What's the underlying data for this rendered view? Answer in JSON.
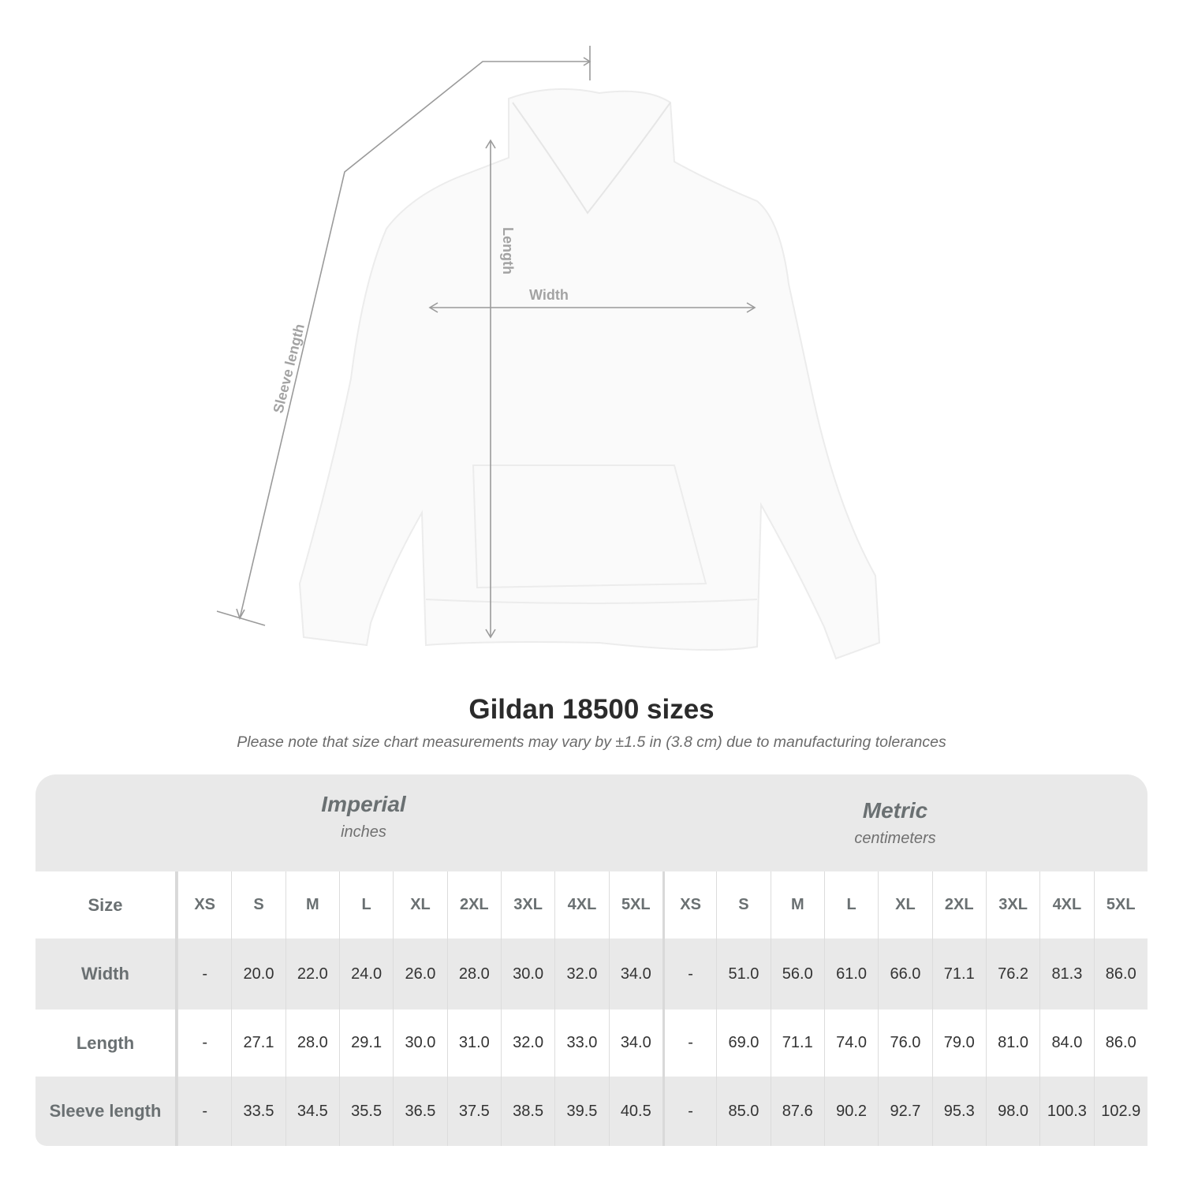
{
  "illustration": {
    "labels": {
      "sleeve": "Sleeve length",
      "length": "Length",
      "width": "Width"
    }
  },
  "title": "Gildan 18500 sizes",
  "note": "Please note that size chart measurements may vary by ±1.5 in (3.8 cm) due to manufacturing tolerances",
  "imperial": {
    "heading": "Imperial",
    "unit": "inches"
  },
  "metric": {
    "heading": "Metric",
    "unit": "centimeters"
  },
  "size_label": "Size",
  "sizes": [
    "XS",
    "S",
    "M",
    "L",
    "XL",
    "2XL",
    "3XL",
    "4XL",
    "5XL"
  ],
  "rows": [
    {
      "label": "Width",
      "imperial": [
        "-",
        "20.0",
        "22.0",
        "24.0",
        "26.0",
        "28.0",
        "30.0",
        "32.0",
        "34.0"
      ],
      "metric": [
        "-",
        "51.0",
        "56.0",
        "61.0",
        "66.0",
        "71.1",
        "76.2",
        "81.3",
        "86.0"
      ]
    },
    {
      "label": "Length",
      "imperial": [
        "-",
        "27.1",
        "28.0",
        "29.1",
        "30.0",
        "31.0",
        "32.0",
        "33.0",
        "34.0"
      ],
      "metric": [
        "-",
        "69.0",
        "71.1",
        "74.0",
        "76.0",
        "79.0",
        "81.0",
        "84.0",
        "86.0"
      ]
    },
    {
      "label": "Sleeve length",
      "imperial": [
        "-",
        "33.5",
        "34.5",
        "35.5",
        "36.5",
        "37.5",
        "38.5",
        "39.5",
        "40.5"
      ],
      "metric": [
        "-",
        "85.0",
        "87.6",
        "90.2",
        "92.7",
        "95.3",
        "98.0",
        "100.3",
        "102.9"
      ]
    }
  ],
  "colors": {
    "band": "#e9e9e9",
    "header_text": "#6a7072",
    "measure_line": "#9a9a9a"
  }
}
